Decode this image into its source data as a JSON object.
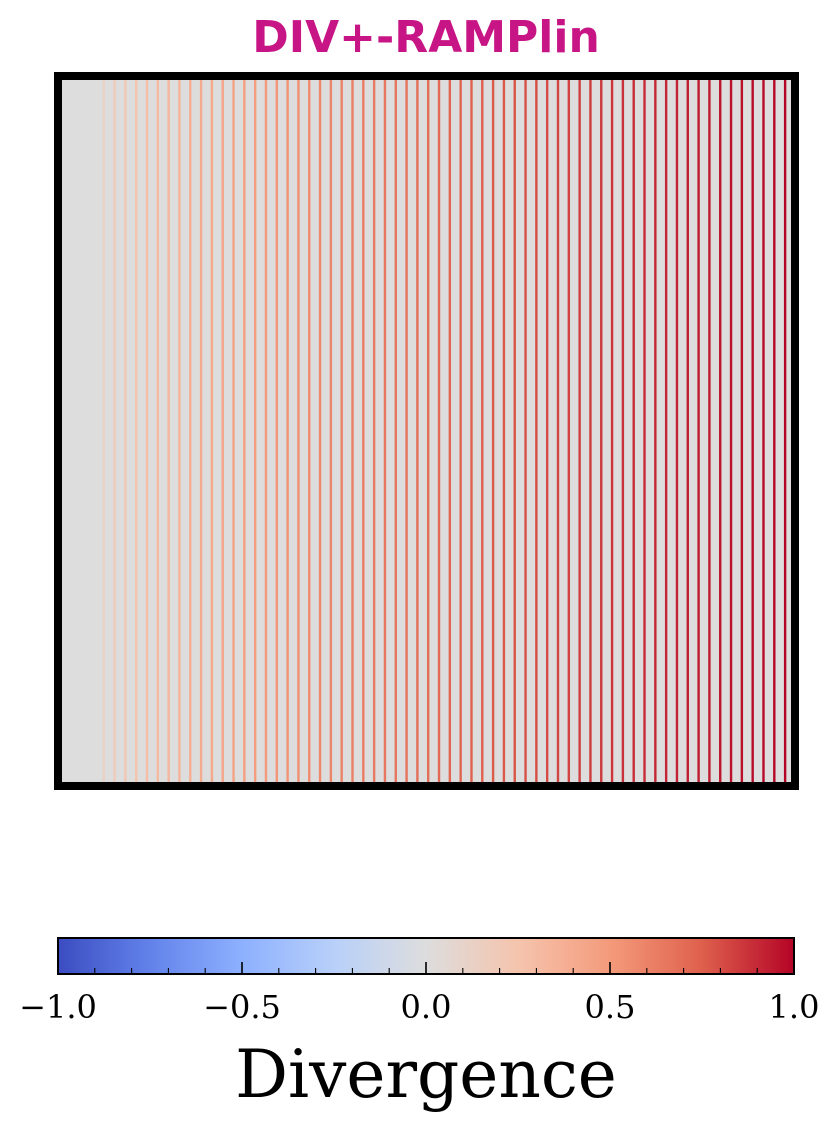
{
  "title_color": "#c71585",
  "chart_data": {
    "type": "heatmap",
    "title": "DIV+-RAMPlin",
    "description_note": "",
    "background_value": 0.0,
    "xlim": [
      0,
      1
    ],
    "ylim": [
      0,
      1
    ],
    "axes_visible": false,
    "stripes": {
      "count": 65,
      "x_start": 0.0474,
      "x_end": 0.9866,
      "value_start": 0.0,
      "value_end": 1.0,
      "value_scale": "sqrt"
    },
    "colorbar": {
      "label": "Divergence",
      "colormap": "coolwarm",
      "vmin": -1.0,
      "vmax": 1.0,
      "ticks": [
        -1.0,
        -0.5,
        0.0,
        0.5,
        1.0
      ],
      "tick_labels": [
        "−1.0",
        "−0.5",
        "0.0",
        "0.5",
        "1.0"
      ],
      "minor_tick_step": 0.1,
      "orientation": "horizontal",
      "placement": "bottom"
    }
  }
}
